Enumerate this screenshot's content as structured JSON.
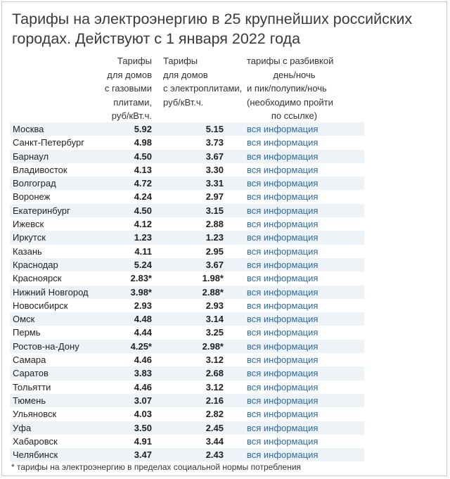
{
  "title_line1": "Тарифы на электроэнергию в 25 крупнейших российских",
  "title_line2": "городах. Действуют с 1 января 2022 года",
  "headers": {
    "gas": [
      "Тарифы",
      "для домов",
      "с газовыми",
      "плитами,",
      "руб/кВт.ч."
    ],
    "electric": [
      "Тарифы",
      "для домов",
      "с электроплитами,",
      "руб/кВт.ч."
    ],
    "breakdown": [
      "тарифы с разбивкой",
      "день/ночь",
      "и пик/полупик/ночь",
      "(необходимо пройти",
      "по ссылке)"
    ]
  },
  "rows": [
    {
      "city": "Москва",
      "gas": "5.92",
      "el": "5.15",
      "link": "вся информация"
    },
    {
      "city": "Санкт-Петербург",
      "gas": "4.98",
      "el": "3.73",
      "link": "вся информация"
    },
    {
      "city": "Барнаул",
      "gas": "4.50",
      "el": "3.67",
      "link": "вся информация"
    },
    {
      "city": "Владивосток",
      "gas": "4.13",
      "el": "3.30",
      "link": "вся информация"
    },
    {
      "city": "Волгоград",
      "gas": "4.72",
      "el": "3.31",
      "link": "вся информация"
    },
    {
      "city": "Воронеж",
      "gas": "4.24",
      "el": "2.97",
      "link": "вся информация"
    },
    {
      "city": "Екатеринбург",
      "gas": "4.50",
      "el": "3.15",
      "link": "вся информация"
    },
    {
      "city": "Ижевск",
      "gas": "4.12",
      "el": "2.88",
      "link": "вся информация"
    },
    {
      "city": "Иркутск",
      "gas": "1.23",
      "el": "1.23",
      "link": "вся информация"
    },
    {
      "city": "Казань",
      "gas": "4.11",
      "el": "2.95",
      "link": "вся информация"
    },
    {
      "city": "Краснодар",
      "gas": "5.24",
      "el": "3.67",
      "link": "вся информация"
    },
    {
      "city": "Красноярск",
      "gas": "2.83*",
      "el": "1.98*",
      "link": "вся информация"
    },
    {
      "city": "Нижний Новгород",
      "gas": "3.98*",
      "el": "2.88*",
      "link": "вся информация"
    },
    {
      "city": "Новосибирск",
      "gas": "2.93",
      "el": "2.93",
      "link": "вся информация"
    },
    {
      "city": "Омск",
      "gas": "4.48",
      "el": "3.14",
      "link": "вся информация"
    },
    {
      "city": "Пермь",
      "gas": "4.44",
      "el": "3.25",
      "link": "вся информация"
    },
    {
      "city": "Ростов-на-Дону",
      "gas": "4.25*",
      "el": "2.98*",
      "link": "вся информация"
    },
    {
      "city": "Самара",
      "gas": "4.46",
      "el": "3.12",
      "link": "вся информация"
    },
    {
      "city": "Саратов",
      "gas": "3.83",
      "el": "2.68",
      "link": "вся информация"
    },
    {
      "city": "Тольятти",
      "gas": "4.46",
      "el": "3.12",
      "link": "вся информация"
    },
    {
      "city": "Тюмень",
      "gas": "3.07",
      "el": "2.16",
      "link": "вся информация"
    },
    {
      "city": "Ульяновск",
      "gas": "4.03",
      "el": "2.82",
      "link": "вся информация"
    },
    {
      "city": "Уфа",
      "gas": "3.50",
      "el": "2.45",
      "link": "вся информация"
    },
    {
      "city": "Хабаровск",
      "gas": "4.91",
      "el": "3.44",
      "link": "вся информация"
    },
    {
      "city": "Челябинск",
      "gas": "3.47",
      "el": "2.43",
      "link": "вся информация"
    }
  ],
  "footnote": "* тарифы на электроэнергию в пределах социальной нормы потребления",
  "colors": {
    "link": "#2a6aa8",
    "row_shade": "#eef3f8",
    "title": "#3a3a3a"
  }
}
